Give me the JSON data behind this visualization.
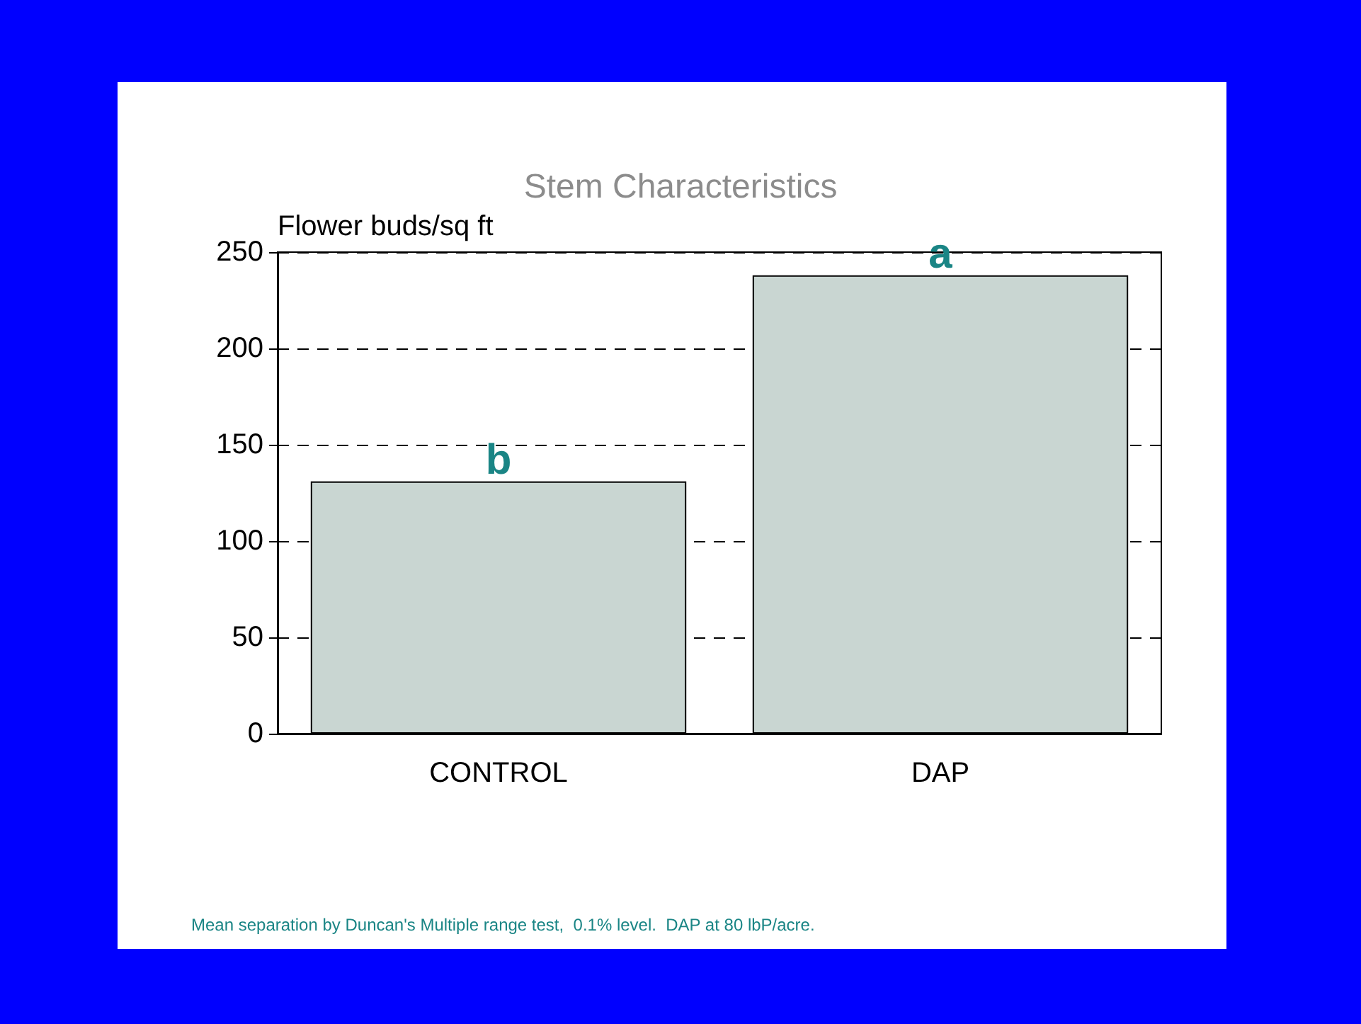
{
  "chart_data": {
    "type": "bar",
    "title": "Stem Characteristics",
    "ylabel": "Flower buds/sq ft",
    "categories": [
      "CONTROL",
      "DAP"
    ],
    "values": [
      131,
      238
    ],
    "color": "#c9d6d2",
    "ylim": [
      0,
      250
    ],
    "yticks": [
      0,
      50,
      100,
      150,
      200,
      250
    ],
    "grid": "y",
    "annotations": [
      {
        "text": "b",
        "x": "CONTROL",
        "y": 131
      },
      {
        "text": "a",
        "x": "DAP",
        "y": 238
      },
      "Mean separation by Duncan's Multiple range test,  0.1% level.  DAP at 80 lbP/acre."
    ]
  }
}
